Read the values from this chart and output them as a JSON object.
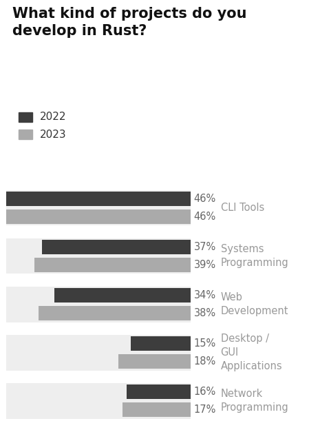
{
  "title": "What kind of projects do you\ndevelop in Rust?",
  "categories": [
    "CLI Tools",
    "Systems\nProgramming",
    "Web\nDevelopment",
    "Desktop /\nGUI\nApplications",
    "Network\nProgramming"
  ],
  "values_2022": [
    46,
    37,
    34,
    15,
    16
  ],
  "values_2023": [
    46,
    39,
    38,
    18,
    17
  ],
  "labels_2022": [
    "46%",
    "37%",
    "34%",
    "15%",
    "16%"
  ],
  "labels_2023": [
    "46%",
    "39%",
    "38%",
    "18%",
    "17%"
  ],
  "color_2022": "#3d3d3d",
  "color_2023": "#aaaaaa",
  "color_bg": "#eeeeee",
  "bar_total": 46,
  "legend_2022": "2022",
  "legend_2023": "2023",
  "title_fontsize": 15,
  "label_fontsize": 10.5,
  "category_fontsize": 10.5,
  "legend_fontsize": 11
}
